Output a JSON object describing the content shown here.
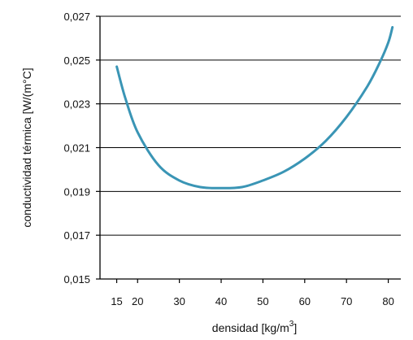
{
  "chart_data": {
    "type": "line",
    "title": "",
    "xlabel": "densidad  [kg/m",
    "xlabel_sup": "3",
    "xlabel_suffix": "]",
    "ylabel": "conductividad térmica  [W/(m°C]",
    "xlim": [
      11,
      83
    ],
    "ylim": [
      0.015,
      0.027
    ],
    "grid": "horizontal",
    "line_color": "#3a95b5",
    "x_ticks": [
      15,
      20,
      30,
      40,
      50,
      60,
      70,
      80
    ],
    "x_tick_labels": [
      "15",
      "20",
      "30",
      "40",
      "50",
      "60",
      "70",
      "80"
    ],
    "y_ticks": [
      0.015,
      0.017,
      0.019,
      0.021,
      0.023,
      0.025,
      0.027
    ],
    "y_tick_labels": [
      "0,015",
      "0,017",
      "0,019",
      "0,021",
      "0,023",
      "0,025",
      "0,027"
    ],
    "series": [
      {
        "x": [
          15,
          17,
          20,
          25,
          30,
          35,
          40,
          45,
          50,
          55,
          60,
          65,
          70,
          75,
          78,
          80,
          81
        ],
        "y": [
          0.0247,
          0.0233,
          0.0217,
          0.0202,
          0.0195,
          0.0192,
          0.01915,
          0.0192,
          0.0195,
          0.0199,
          0.0205,
          0.0213,
          0.0224,
          0.0238,
          0.0249,
          0.0258,
          0.0265
        ]
      }
    ]
  }
}
